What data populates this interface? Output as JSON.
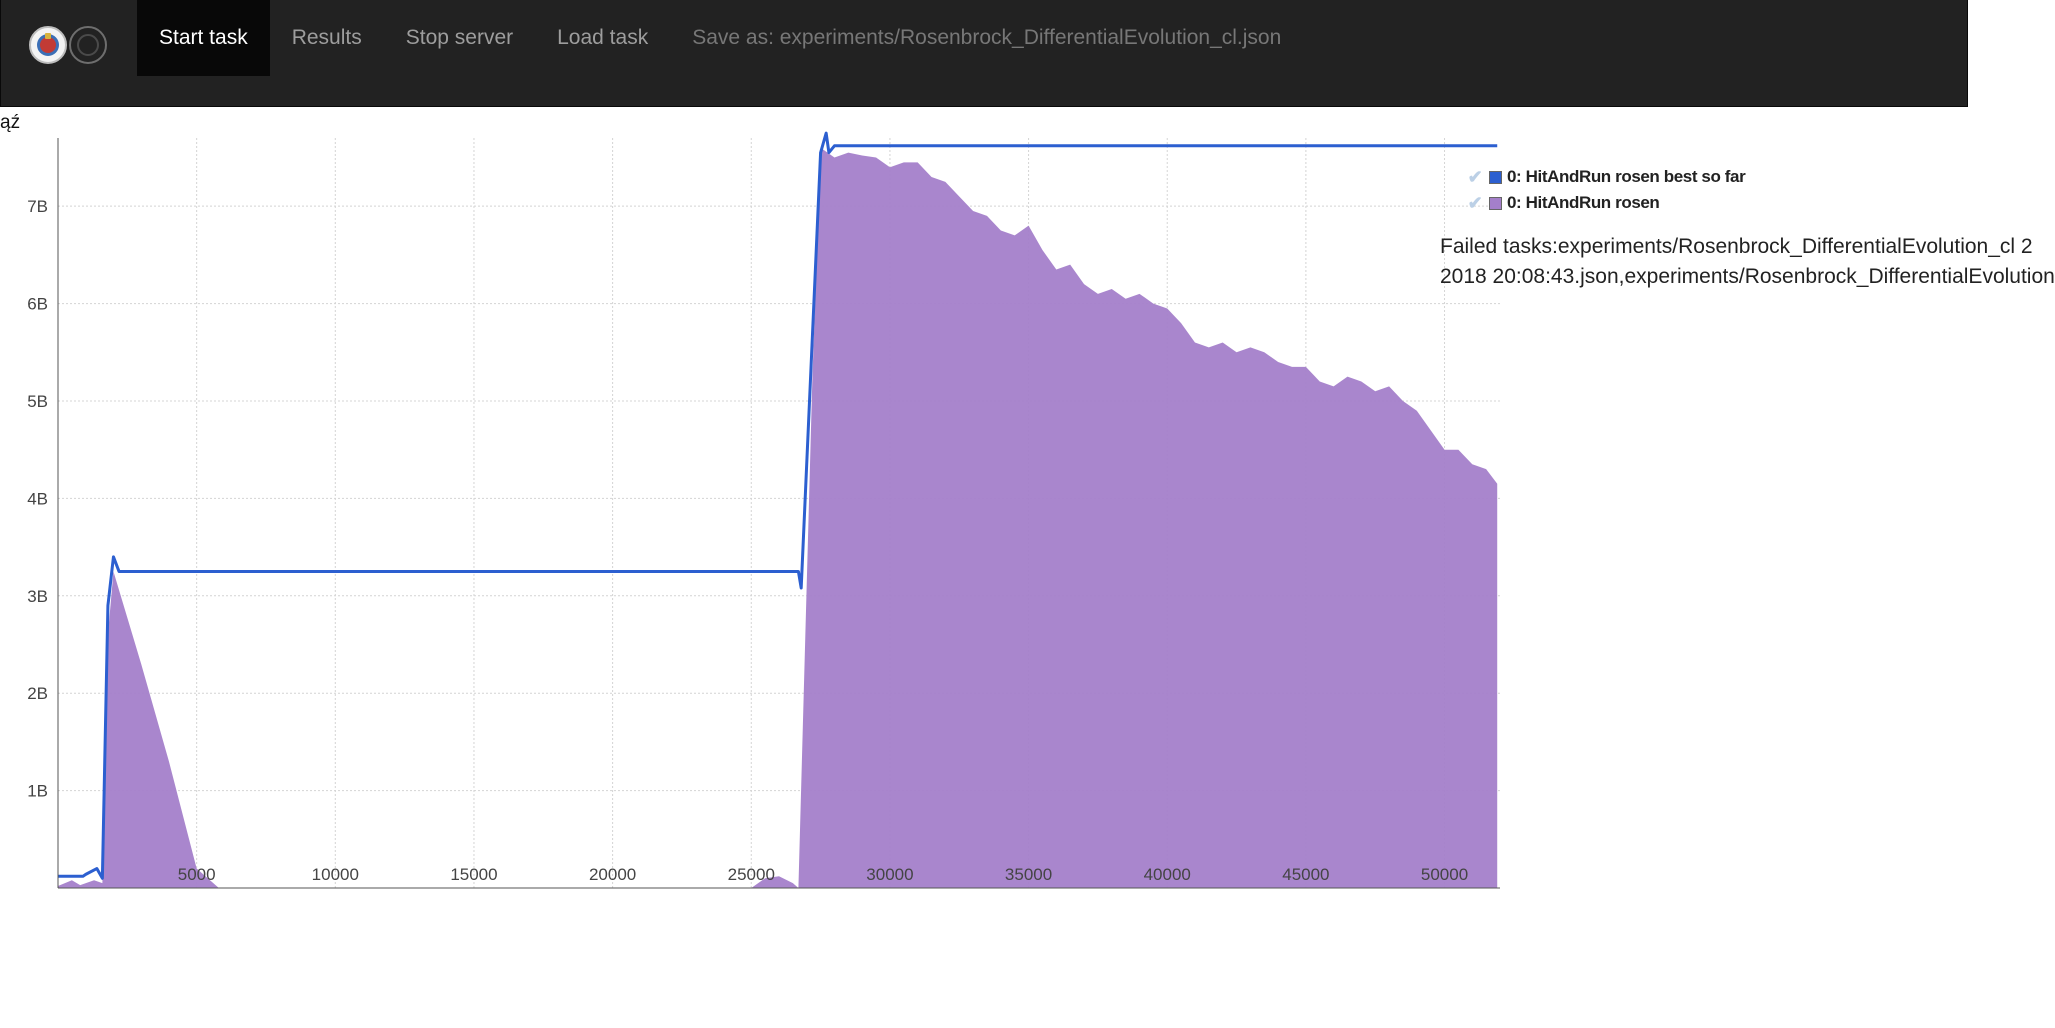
{
  "navbar": {
    "items": [
      {
        "label": "Start task"
      },
      {
        "label": "Results"
      },
      {
        "label": "Stop server"
      },
      {
        "label": "Load task"
      }
    ],
    "save_as": "Save as: experiments/Rosenbrock_DifferentialEvolution_cl.json"
  },
  "page": {
    "stray_text": "ąź"
  },
  "chart_data": {
    "type": "area",
    "x_ticks": [
      "5000",
      "10000",
      "15000",
      "20000",
      "25000",
      "30000",
      "35000",
      "40000",
      "45000",
      "50000"
    ],
    "y_ticks": [
      "1B",
      "2B",
      "3B",
      "4B",
      "5B",
      "6B",
      "7B"
    ],
    "xlim": [
      0,
      52000
    ],
    "ylim": [
      0,
      7.7
    ],
    "series": [
      {
        "name": "0: HitAndRun rosen best so far",
        "color": "#2c5fd0",
        "x": [
          0,
          900,
          1000,
          1400,
          1600,
          1800,
          2000,
          2200,
          5000,
          10000,
          15000,
          20000,
          25000,
          26700,
          26800,
          27500,
          27700,
          27800,
          28000,
          28200,
          30000,
          35000,
          40000,
          45000,
          50000,
          51900
        ],
        "y": [
          0.12,
          0.12,
          0.14,
          0.2,
          0.1,
          2.9,
          3.4,
          3.25,
          3.25,
          3.25,
          3.25,
          3.25,
          3.25,
          3.25,
          3.08,
          7.55,
          7.75,
          7.55,
          7.62,
          7.62,
          7.62,
          7.62,
          7.62,
          7.62,
          7.62,
          7.62
        ]
      },
      {
        "name": "0: HitAndRun rosen",
        "color": "#a47fca",
        "x": [
          0,
          500,
          800,
          1300,
          1600,
          1800,
          2000,
          3000,
          4000,
          5000,
          5800,
          6000,
          25000,
          25500,
          26000,
          26500,
          26700,
          27200,
          27500,
          28000,
          28500,
          29000,
          29500,
          30000,
          30500,
          31000,
          31500,
          32000,
          32500,
          33000,
          33500,
          34000,
          34500,
          35000,
          35500,
          36000,
          36500,
          37000,
          37500,
          38000,
          38500,
          39000,
          39500,
          40000,
          40500,
          41000,
          41500,
          42000,
          42500,
          43000,
          43500,
          44000,
          44500,
          45000,
          45500,
          46000,
          46500,
          47000,
          47500,
          48000,
          48500,
          49000,
          49500,
          50000,
          50500,
          51000,
          51500,
          51900
        ],
        "y": [
          0.02,
          0.08,
          0.03,
          0.08,
          0.05,
          2.6,
          3.25,
          2.3,
          1.3,
          0.2,
          0.0,
          0.0,
          0.0,
          0.1,
          0.12,
          0.05,
          0.0,
          5.2,
          7.6,
          7.5,
          7.55,
          7.52,
          7.5,
          7.4,
          7.45,
          7.45,
          7.3,
          7.25,
          7.1,
          6.95,
          6.9,
          6.75,
          6.7,
          6.8,
          6.55,
          6.35,
          6.4,
          6.2,
          6.1,
          6.15,
          6.05,
          6.1,
          6.0,
          5.95,
          5.8,
          5.6,
          5.55,
          5.6,
          5.5,
          5.55,
          5.5,
          5.4,
          5.35,
          5.35,
          5.2,
          5.15,
          5.25,
          5.2,
          5.1,
          5.15,
          5.0,
          4.9,
          4.7,
          4.5,
          4.5,
          4.35,
          4.3,
          4.15
        ]
      }
    ]
  },
  "failed_tasks": {
    "line1": "Failed tasks:experiments/Rosenbrock_DifferentialEvolution_cl 2",
    "line2": "2018 20:08:43.json,experiments/Rosenbrock_DifferentialEvolution"
  }
}
